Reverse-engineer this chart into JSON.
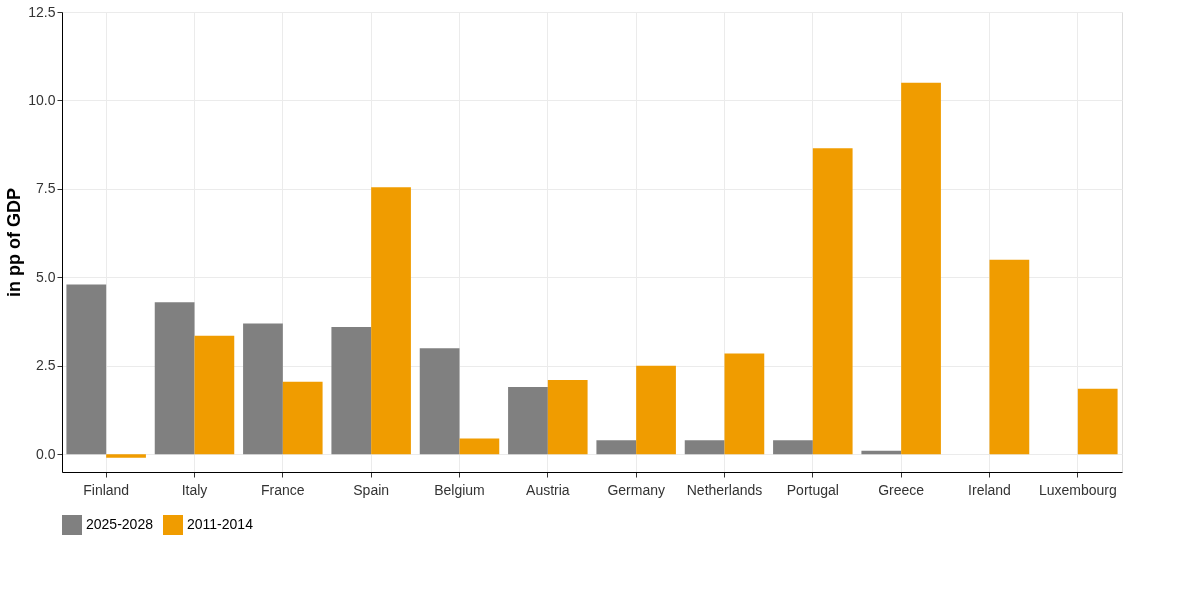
{
  "chart_data": {
    "type": "bar",
    "ylabel": "in pp of GDP",
    "categories": [
      "Finland",
      "Italy",
      "France",
      "Spain",
      "Belgium",
      "Austria",
      "Germany",
      "Netherlands",
      "Portugal",
      "Greece",
      "Ireland",
      "Luxembourg"
    ],
    "series": [
      {
        "name": "2025-2028",
        "color": "#808080",
        "values": [
          4.8,
          4.3,
          3.7,
          3.6,
          3.0,
          1.9,
          0.4,
          0.4,
          0.4,
          0.1,
          0,
          0
        ]
      },
      {
        "name": "2011-2014",
        "color": "#f09c00",
        "values": [
          -0.1,
          3.35,
          2.05,
          7.55,
          0.45,
          2.1,
          2.5,
          2.85,
          8.65,
          10.5,
          5.5,
          1.85
        ]
      }
    ],
    "ylim": [
      -0.5,
      12.5
    ],
    "yticks": [
      {
        "value": 0,
        "label": "0.0"
      },
      {
        "value": 2.5,
        "label": "2.5"
      },
      {
        "value": 5,
        "label": "5.0"
      },
      {
        "value": 7.5,
        "label": "7.5"
      },
      {
        "value": 10,
        "label": "10.0"
      },
      {
        "value": 12.5,
        "label": "12.5"
      }
    ],
    "grid": true,
    "legend": "bottom"
  }
}
